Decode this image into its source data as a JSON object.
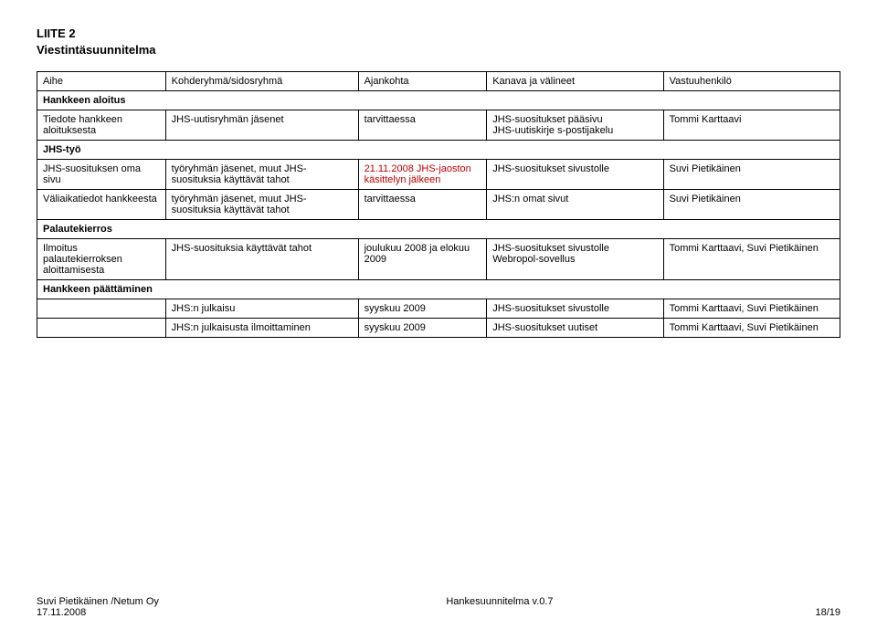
{
  "title_line1": "LIITE 2",
  "title_line2": "Viestintäsuunnitelma",
  "columns": {
    "c0": "Aihe",
    "c1": "Kohderyhmä/sidosryhmä",
    "c2": "Ajankohta",
    "c3": "Kanava ja välineet",
    "c4": "Vastuuhenkilö"
  },
  "col_widths": [
    "16%",
    "24%",
    "16%",
    "22%",
    "22%"
  ],
  "sections": {
    "s0": "Hankkeen aloitus",
    "s1": "JHS-työ",
    "s2": "Palautekierros",
    "s3": "Hankkeen päättäminen"
  },
  "rows": {
    "r0": {
      "c0": "Tiedote hankkeen aloituksesta",
      "c1": "JHS-uutisryhmän jäsenet",
      "c2": "tarvittaessa",
      "c3": "JHS-suositukset pääsivu\nJHS-uutiskirje s-postijakelu",
      "c4": "Tommi Karttaavi"
    },
    "r1": {
      "c0": "JHS-suosituksen oma sivu",
      "c1": "työryhmän jäsenet, muut JHS-suosituksia käyttävät tahot",
      "c2": "21.11.2008 JHS-jaoston käsittelyn jälkeen",
      "c3": "JHS-suositukset sivustolle",
      "c4": "Suvi Pietikäinen"
    },
    "r2": {
      "c0": "Väliaikatiedot hankkeesta",
      "c1": "työryhmän jäsenet, muut JHS-suosituksia käyttävät tahot",
      "c2": "tarvittaessa",
      "c3": "JHS:n omat sivut",
      "c4": "Suvi Pietikäinen"
    },
    "r3": {
      "c0": "Ilmoitus palautekierroksen aloittamisesta",
      "c1": "JHS-suosituksia käyttävät tahot",
      "c2": "joulukuu 2008 ja elokuu 2009",
      "c3": "JHS-suositukset sivustolle\nWebropol-sovellus",
      "c4": "Tommi Karttaavi, Suvi Pietikäinen"
    },
    "r4": {
      "c0": "",
      "c1": "JHS:n julkaisu",
      "c2": "syyskuu 2009",
      "c3": "JHS-suositukset sivustolle",
      "c4": "Tommi Karttaavi, Suvi Pietikäinen"
    },
    "r5": {
      "c0": "",
      "c1": "JHS:n julkaisusta ilmoittaminen",
      "c2": "syyskuu 2009",
      "c3": "JHS-suositukset uutiset",
      "c4": "Tommi Karttaavi, Suvi Pietikäinen"
    }
  },
  "footer": {
    "left1": "Suvi Pietikäinen /Netum Oy",
    "center1": "Hankesuunnitelma v.0.7",
    "left2": "17.11.2008",
    "right2": "18/19"
  }
}
